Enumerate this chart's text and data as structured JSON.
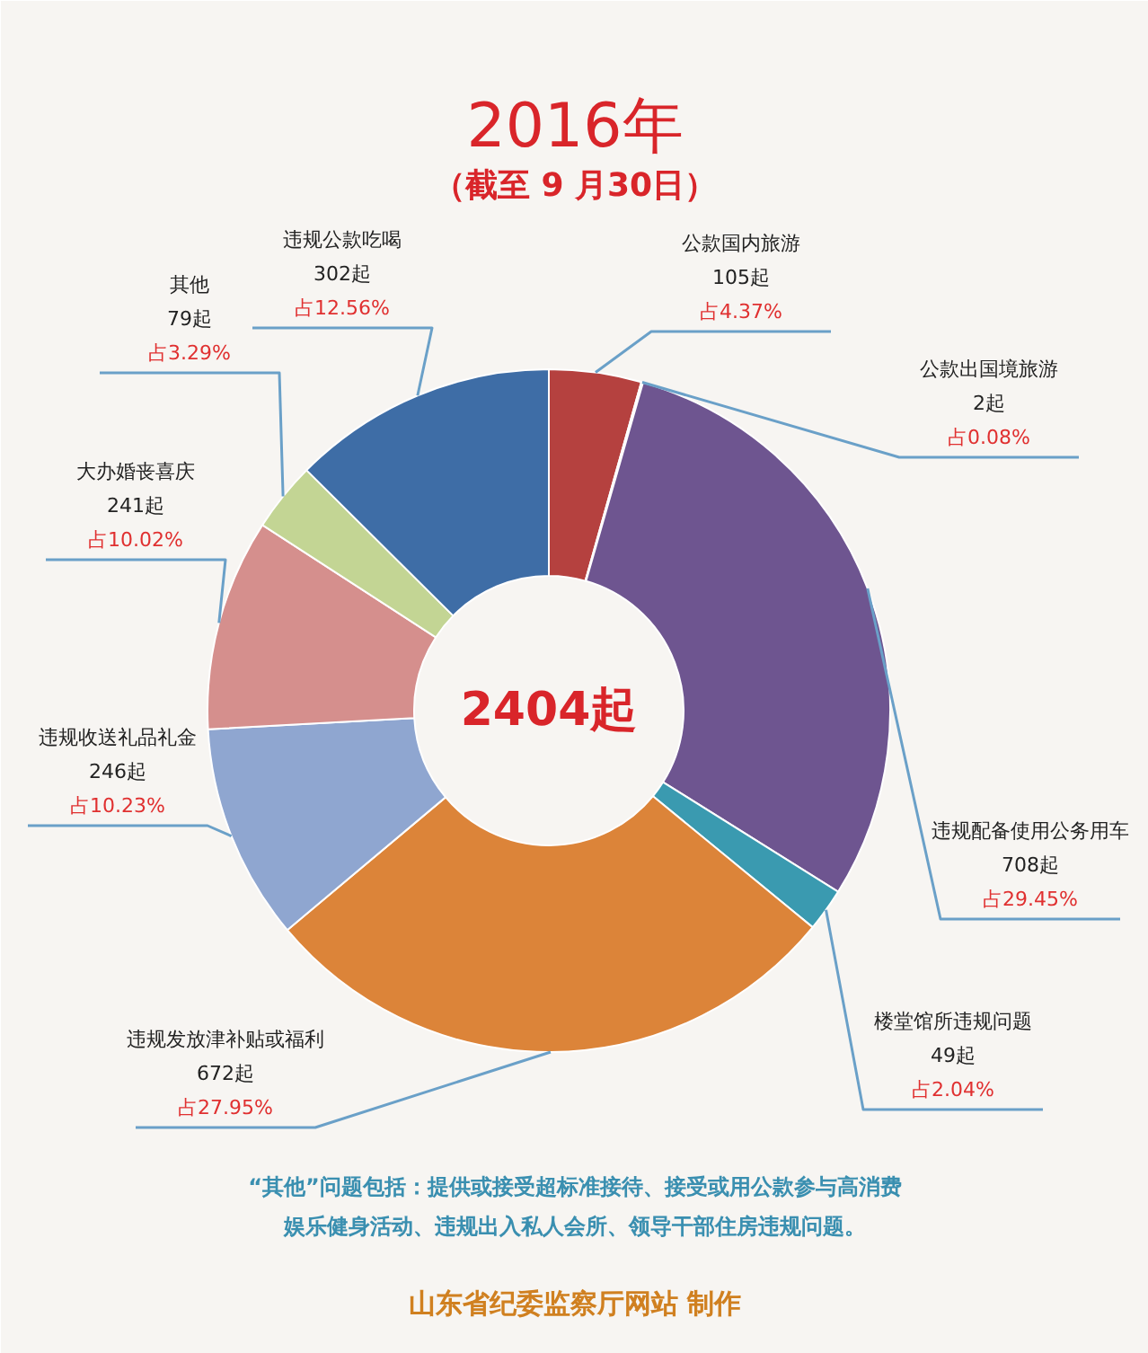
{
  "chart_data": {
    "type": "donut",
    "title": "2016年",
    "subtitle": "（截至 9 月30日）",
    "categories": [
      "公款国内旅游",
      "公款出国境旅游",
      "违规配备使用公务用车",
      "楼堂馆所违规问题",
      "违规发放津补贴或福利",
      "违规收送礼品礼金",
      "大办婚丧喜庆",
      "其他",
      "违规公款吃喝"
    ],
    "values": [
      105,
      2,
      708,
      49,
      672,
      246,
      241,
      79,
      302
    ],
    "value_labels": [
      "105起占4.37%",
      "2起占0.08%",
      "708起占29.45%",
      "49起占2.04%",
      "672起占27.95%",
      "246起占10.23%",
      "241起占10.02%",
      "79起占3.29%",
      "302起占12.56%"
    ],
    "colors": [
      "#b5413f",
      "#8b4a60",
      "#6e5590",
      "#3a9ab0",
      "#dc8439",
      "#8fa6d0",
      "#d58f8d",
      "#c3d594",
      "#3e6da6"
    ],
    "annotations": [
      "2404起",
      "“其他”问题包括：提供或接受超标准接待、接受或用公款参与高消费娱乐健身活动、违规出入私人会所、领导干部住房违规问题。",
      "山东省纪委监察厅网站 制作"
    ]
  }
}
